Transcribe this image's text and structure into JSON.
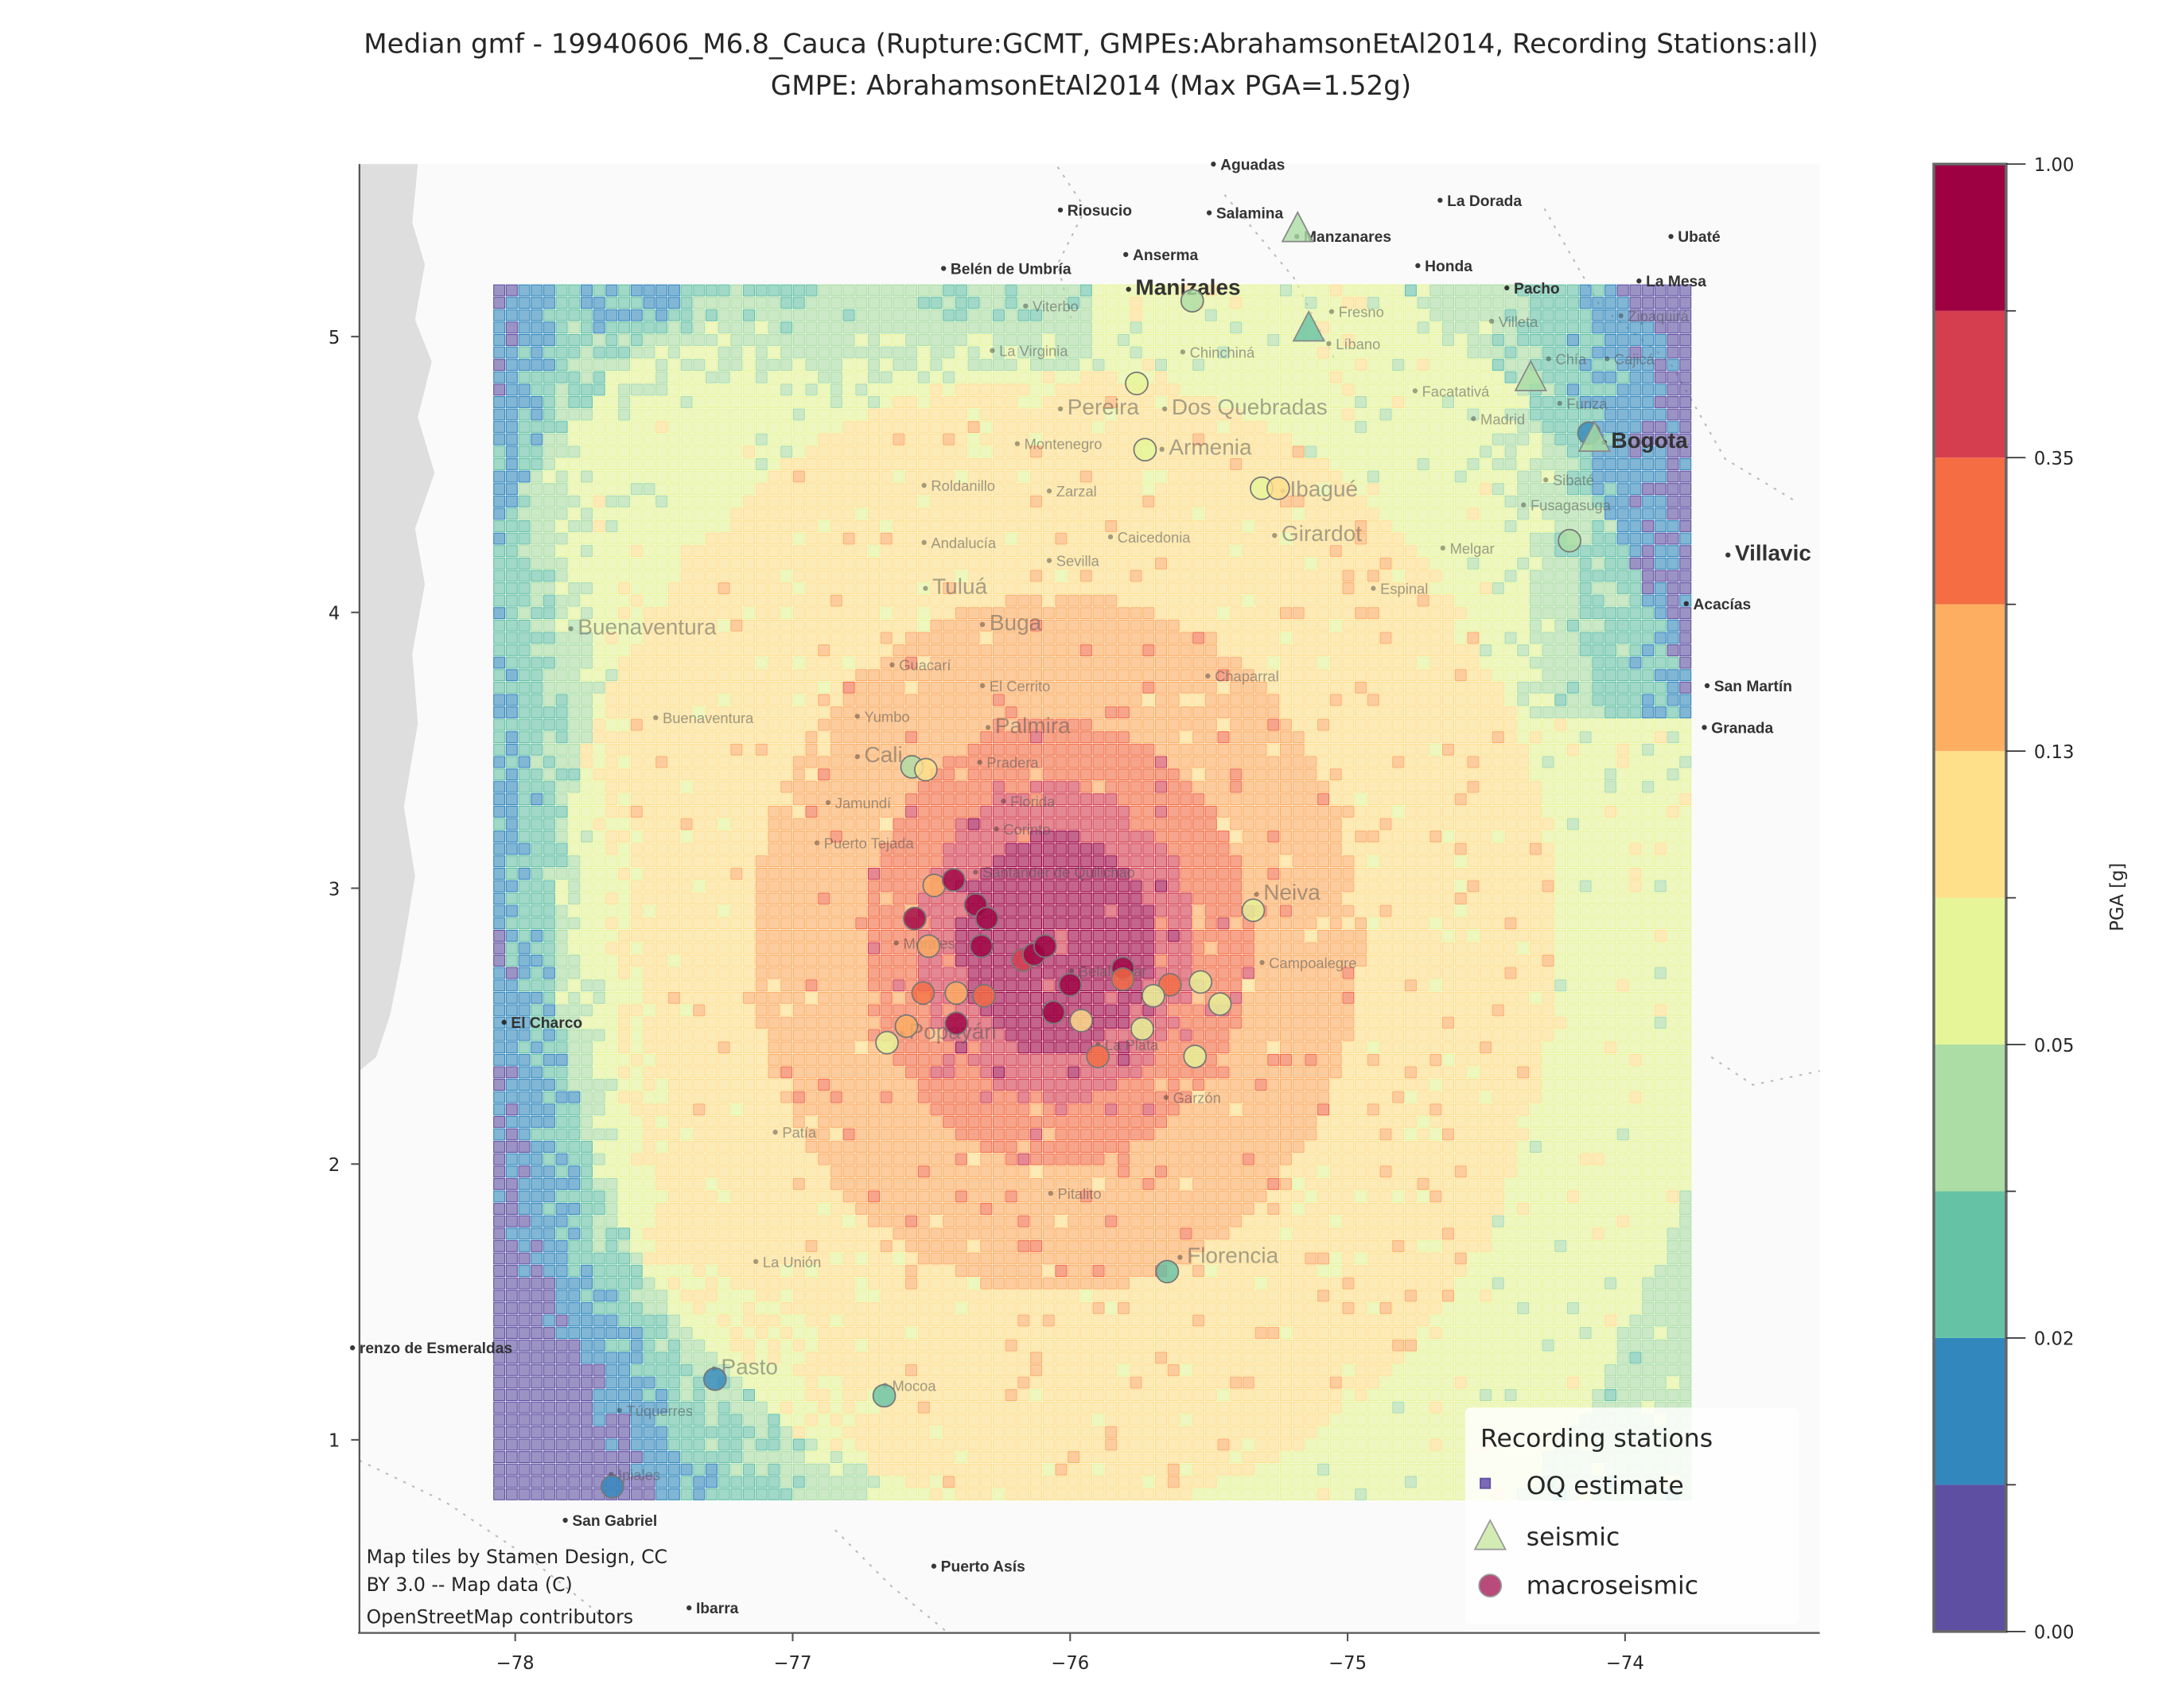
{
  "chart_data": {
    "type": "heatmap",
    "title": "Median gmf - 19940606_M6.8_Cauca (Rupture:GCMT, GMPEs:AbrahamsonEtAl2014, Recording Stations:all)",
    "subtitle": "GMPE: AbrahamsonEtAl2014 (Max PGA=1.52g)",
    "xlabel": "",
    "ylabel": "",
    "xlim": [
      -78.56,
      -73.3
    ],
    "ylim": [
      0.3,
      5.62
    ],
    "xticks": [
      -78,
      -77,
      -76,
      -75,
      -74
    ],
    "xtick_labels": [
      "−78",
      "−77",
      "−76",
      "−75",
      "−74"
    ],
    "yticks": [
      1,
      2,
      3,
      4,
      5
    ],
    "ytick_labels": [
      "1",
      "2",
      "3",
      "4",
      "5"
    ],
    "grid_extent": {
      "lon": [
        -78.08,
        -73.78
      ],
      "lat": [
        0.78,
        5.15
      ]
    },
    "epicentre_approx": {
      "lon": -76.05,
      "lat": 2.8
    },
    "colorbar": {
      "label": "PGA [g]",
      "tick_labels": [
        "1.00",
        "0.35",
        "0.13",
        "0.05",
        "0.02",
        "0.00"
      ],
      "class_colors": [
        "#5e4fa2",
        "#3288bd",
        "#66c2a5",
        "#abdda4",
        "#e6f598",
        "#fee08b",
        "#fdae61",
        "#f46d43",
        "#d53e4f",
        "#9e0142"
      ]
    },
    "legend": {
      "title": "Recording stations",
      "placement": "lower-right",
      "items": [
        {
          "label": "OQ estimate",
          "marker": "square",
          "color": "#5e4fa2"
        },
        {
          "label": "seismic",
          "marker": "triangle",
          "color": "#d2ecb4"
        },
        {
          "label": "macroseismic",
          "marker": "circle",
          "color": "#b94b7a"
        }
      ]
    },
    "stations": [
      {
        "type": "macroseismic",
        "lon": -76.57,
        "lat": 3.44,
        "class": 3
      },
      {
        "type": "macroseismic",
        "lon": -76.52,
        "lat": 3.43,
        "class": 5
      },
      {
        "type": "macroseismic",
        "lon": -76.49,
        "lat": 3.01,
        "class": 6
      },
      {
        "type": "macroseismic",
        "lon": -76.42,
        "lat": 3.03,
        "class": 9
      },
      {
        "type": "macroseismic",
        "lon": -76.56,
        "lat": 2.89,
        "class": 9
      },
      {
        "type": "macroseismic",
        "lon": -76.51,
        "lat": 2.79,
        "class": 6
      },
      {
        "type": "macroseismic",
        "lon": -76.34,
        "lat": 2.94,
        "class": 9
      },
      {
        "type": "macroseismic",
        "lon": -76.3,
        "lat": 2.89,
        "class": 9
      },
      {
        "type": "macroseismic",
        "lon": -76.32,
        "lat": 2.79,
        "class": 9
      },
      {
        "type": "macroseismic",
        "lon": -76.53,
        "lat": 2.62,
        "class": 7
      },
      {
        "type": "macroseismic",
        "lon": -76.41,
        "lat": 2.62,
        "class": 6
      },
      {
        "type": "macroseismic",
        "lon": -76.31,
        "lat": 2.61,
        "class": 7
      },
      {
        "type": "macroseismic",
        "lon": -76.41,
        "lat": 2.51,
        "class": 9
      },
      {
        "type": "macroseismic",
        "lon": -76.59,
        "lat": 2.5,
        "class": 6
      },
      {
        "type": "macroseismic",
        "lon": -76.66,
        "lat": 2.44,
        "class": 4
      },
      {
        "type": "macroseismic",
        "lon": -76.17,
        "lat": 2.74,
        "class": 8
      },
      {
        "type": "macroseismic",
        "lon": -76.13,
        "lat": 2.76,
        "class": 9
      },
      {
        "type": "macroseismic",
        "lon": -76.09,
        "lat": 2.79,
        "class": 9
      },
      {
        "type": "macroseismic",
        "lon": -76.0,
        "lat": 2.65,
        "class": 9
      },
      {
        "type": "macroseismic",
        "lon": -76.06,
        "lat": 2.55,
        "class": 9
      },
      {
        "type": "macroseismic",
        "lon": -75.81,
        "lat": 2.71,
        "class": 9
      },
      {
        "type": "macroseismic",
        "lon": -75.81,
        "lat": 2.67,
        "class": 7
      },
      {
        "type": "macroseismic",
        "lon": -75.64,
        "lat": 2.65,
        "class": 7
      },
      {
        "type": "macroseismic",
        "lon": -75.96,
        "lat": 2.52,
        "class": 5
      },
      {
        "type": "macroseismic",
        "lon": -75.74,
        "lat": 2.49,
        "class": 4
      },
      {
        "type": "macroseismic",
        "lon": -75.9,
        "lat": 2.39,
        "class": 7
      },
      {
        "type": "macroseismic",
        "lon": -75.55,
        "lat": 2.39,
        "class": 4
      },
      {
        "type": "macroseismic",
        "lon": -75.7,
        "lat": 2.61,
        "class": 4
      },
      {
        "type": "macroseismic",
        "lon": -75.53,
        "lat": 2.66,
        "class": 4
      },
      {
        "type": "macroseismic",
        "lon": -75.46,
        "lat": 2.58,
        "class": 4
      },
      {
        "type": "macroseismic",
        "lon": -75.34,
        "lat": 2.92,
        "class": 4
      },
      {
        "type": "macroseismic",
        "lon": -75.65,
        "lat": 1.61,
        "class": 2
      },
      {
        "type": "macroseismic",
        "lon": -76.67,
        "lat": 1.16,
        "class": 2
      },
      {
        "type": "macroseismic",
        "lon": -77.28,
        "lat": 1.22,
        "class": 1
      },
      {
        "type": "macroseismic",
        "lon": -77.65,
        "lat": 0.83,
        "class": 1
      },
      {
        "type": "macroseismic",
        "lon": -75.76,
        "lat": 4.83,
        "class": 4
      },
      {
        "type": "macroseismic",
        "lon": -75.73,
        "lat": 4.59,
        "class": 4
      },
      {
        "type": "macroseismic",
        "lon": -75.31,
        "lat": 4.45,
        "class": 4
      },
      {
        "type": "macroseismic",
        "lon": -75.25,
        "lat": 4.45,
        "class": 5
      },
      {
        "type": "macroseismic",
        "lon": -74.2,
        "lat": 4.26,
        "class": 3
      },
      {
        "type": "macroseismic",
        "lon": -75.56,
        "lat": 5.13,
        "class": 3
      },
      {
        "type": "macroseismic",
        "lon": -74.13,
        "lat": 4.65,
        "class": 1
      },
      {
        "type": "seismic",
        "lon": -75.18,
        "lat": 5.39,
        "class": 3
      },
      {
        "type": "seismic",
        "lon": -75.14,
        "lat": 5.03,
        "class": 2
      },
      {
        "type": "seismic",
        "lon": -74.34,
        "lat": 4.85,
        "class": 3
      },
      {
        "type": "seismic",
        "lon": -74.11,
        "lat": 4.63,
        "class": 3
      }
    ]
  },
  "map": {
    "cities": [
      "Aguadas",
      "Riosucio",
      "Salamina",
      "Manzanares",
      "La Dorada",
      "Anserma",
      "Belén de Umbría",
      "Manizales",
      "Honda",
      "Ubaté",
      "Pacho",
      "La Mesa",
      "Villavic",
      "Acacías",
      "San Martín",
      "Granada",
      "El Charco",
      "renzo de Esmeraldas",
      "San Gabriel",
      "Puerto Asís",
      "Bogota",
      "Ibarra",
      "Viterbo",
      "Fresno",
      "Villeta",
      "Zipaquirá",
      "La Virginia",
      "Chinchiná",
      "Líbano",
      "Chía",
      "Cajicá",
      "Pereira",
      "Dos Quebradas",
      "Facatativá",
      "Funza",
      "Madrid",
      "Montenegro",
      "Armenia",
      "Roldanillo",
      "Zarzal",
      "Ibagué",
      "Sibaté",
      "Fusagasuga",
      "Caicedonia",
      "Girardot",
      "Melgar",
      "Andalucía",
      "Sevilla",
      "Tuluá",
      "Espinal",
      "Buenaventura",
      "Buga",
      "Guacarí",
      "El Cerrito",
      "Chaparral",
      "Buenaventura",
      "Yumbo",
      "Palmira",
      "Cali",
      "Pradera",
      "Jamundí",
      "Florida",
      "Corinto",
      "Puerto Tejada",
      "Santander de Quilichao",
      "Neiva",
      "Morales",
      "Campoalegre",
      "Belalcázar",
      "Popayán",
      "La Plata",
      "Garzón",
      "Patía",
      "Pitalito",
      "Florencia",
      "La Unión",
      "Pasto",
      "Mocoa",
      "Túquerres",
      "Ipiales"
    ],
    "attribution": [
      "Map tiles by Stamen Design, CC",
      "BY 3.0 -- Map data (C)",
      "OpenStreetMap contributors"
    ]
  }
}
